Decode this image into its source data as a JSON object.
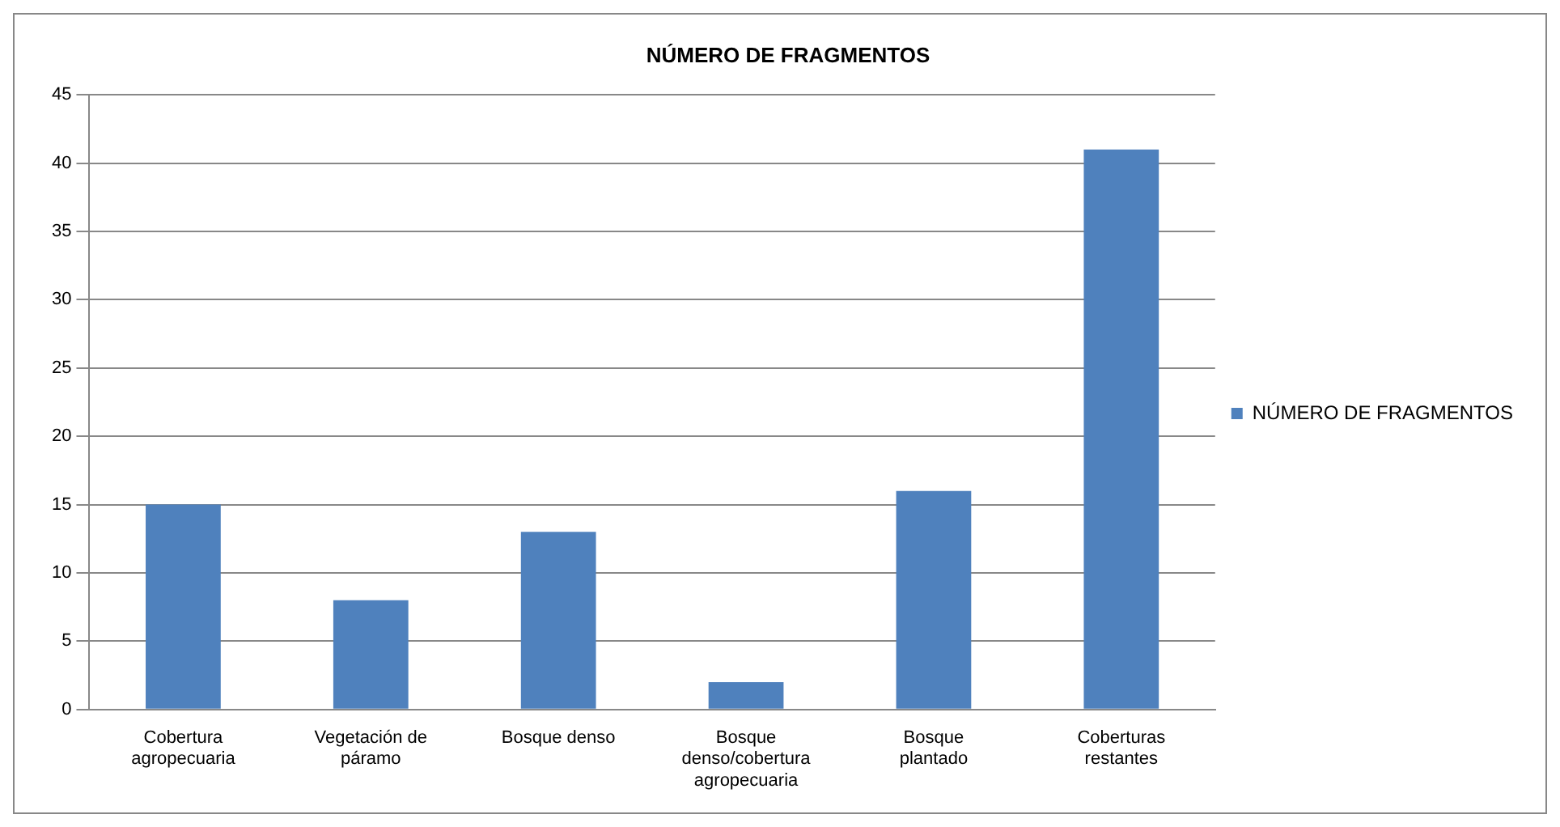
{
  "chart_data": {
    "type": "bar",
    "title": "NÚMERO DE FRAGMENTOS",
    "categories": [
      "Cobertura agropecuaria",
      "Vegetación de páramo",
      "Bosque denso",
      "Bosque denso/cobertura agropecuaria",
      "Bosque plantado",
      "Coberturas restantes"
    ],
    "series": [
      {
        "name": "NÚMERO DE FRAGMENTOS",
        "color": "#4f81bd",
        "values": [
          15,
          8,
          13,
          2,
          16,
          41
        ]
      }
    ],
    "ylim": [
      0,
      45
    ],
    "yticks": [
      0,
      5,
      10,
      15,
      20,
      25,
      30,
      35,
      40,
      45
    ],
    "grid": "y",
    "legend": "right"
  }
}
